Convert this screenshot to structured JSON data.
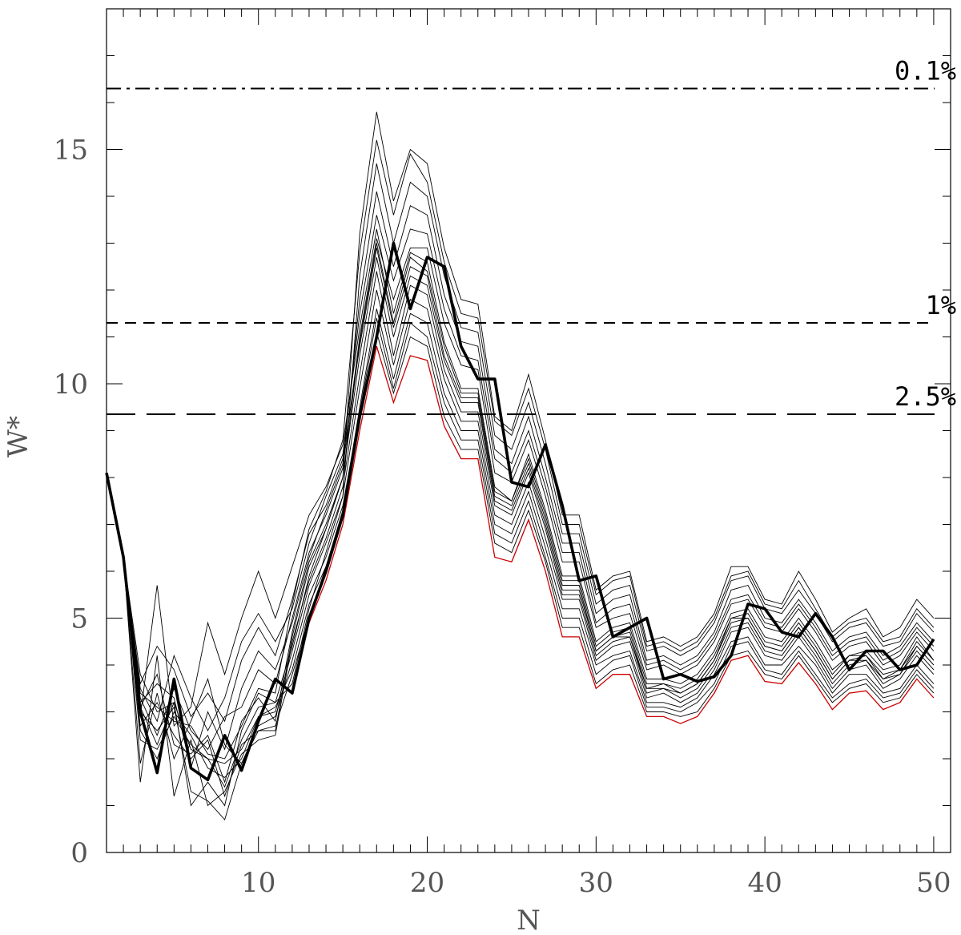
{
  "chart_data": {
    "type": "line",
    "xlabel": "N",
    "ylabel": "W*",
    "xlim": [
      1,
      51
    ],
    "ylim": [
      0,
      18
    ],
    "x_ticks_major": [
      10,
      20,
      30,
      40,
      50
    ],
    "y_ticks_major": [
      0,
      5,
      10,
      15
    ],
    "x_tick_labels": [
      "10",
      "20",
      "30",
      "40",
      "50"
    ],
    "y_tick_labels": [
      "0",
      "5",
      "10",
      "15"
    ],
    "grid": false,
    "x": [
      1,
      2,
      3,
      4,
      5,
      6,
      7,
      8,
      9,
      10,
      11,
      12,
      13,
      14,
      15,
      16,
      17,
      18,
      19,
      20,
      21,
      22,
      23,
      24,
      25,
      26,
      27,
      28,
      29,
      30,
      31,
      32,
      33,
      34,
      35,
      36,
      37,
      38,
      39,
      40,
      41,
      42,
      43,
      44,
      45,
      46,
      47,
      48,
      49,
      50
    ],
    "thresholds": [
      {
        "label": "0.1%",
        "value": 16.3,
        "style": "dashdot"
      },
      {
        "label": "1%",
        "value": 11.3,
        "style": "dashed"
      },
      {
        "label": "2.5%",
        "value": 9.35,
        "style": "longdash"
      }
    ],
    "observed": {
      "values": [
        8.1,
        6.3,
        3.0,
        1.7,
        3.7,
        1.8,
        1.55,
        2.5,
        1.75,
        2.8,
        3.7,
        3.4,
        5.0,
        6.0,
        7.2,
        9.3,
        11.0,
        13.0,
        11.6,
        12.7,
        12.5,
        10.8,
        10.1,
        10.1,
        7.9,
        7.8,
        8.7,
        7.4,
        5.8,
        5.9,
        4.6,
        4.8,
        5.0,
        3.7,
        3.8,
        3.65,
        3.75,
        4.2,
        5.3,
        5.2,
        4.7,
        4.6,
        5.1,
        4.6,
        3.9,
        4.3,
        4.3,
        3.9,
        4.0,
        4.55
      ]
    },
    "lower_envelope": {
      "values": [
        8.1,
        6.3,
        3.0,
        1.7,
        3.7,
        1.8,
        1.55,
        2.5,
        1.75,
        2.8,
        3.7,
        3.4,
        4.9,
        5.8,
        7.0,
        9.0,
        10.8,
        9.6,
        10.6,
        10.5,
        9.1,
        8.4,
        8.4,
        6.3,
        6.2,
        7.1,
        6.0,
        4.6,
        4.6,
        3.5,
        3.8,
        3.8,
        2.9,
        2.9,
        2.75,
        2.9,
        3.4,
        4.1,
        4.2,
        3.65,
        3.6,
        4.05,
        3.6,
        3.05,
        3.4,
        3.45,
        3.05,
        3.2,
        3.7,
        3.3
      ]
    },
    "simulations": [
      {
        "values": [
          8.1,
          6.3,
          1.9,
          3.4,
          2.0,
          2.8,
          3.7,
          2.3,
          1.9,
          2.7,
          2.9,
          4.1,
          5.5,
          6.3,
          7.4,
          9.4,
          11.4,
          9.9,
          11.3,
          11.0,
          9.6,
          8.8,
          8.8,
          6.8,
          6.6,
          7.5,
          6.3,
          5.0,
          5.0,
          3.8,
          4.1,
          4.2,
          3.1,
          3.1,
          3.0,
          3.2,
          3.6,
          4.4,
          4.5,
          3.9,
          3.8,
          4.3,
          3.8,
          3.3,
          3.6,
          3.7,
          3.3,
          3.4,
          3.9,
          3.5
        ]
      },
      {
        "values": [
          8.1,
          6.3,
          2.4,
          2.2,
          2.9,
          2.3,
          2.0,
          1.9,
          2.2,
          2.9,
          3.1,
          3.9,
          5.3,
          6.1,
          7.3,
          9.5,
          11.6,
          10.1,
          11.5,
          11.3,
          9.8,
          9.0,
          9.0,
          7.0,
          6.8,
          7.7,
          6.5,
          5.2,
          5.2,
          4.0,
          4.2,
          4.3,
          3.2,
          3.2,
          3.1,
          3.3,
          3.8,
          4.5,
          4.6,
          4.0,
          4.0,
          4.4,
          4.0,
          3.4,
          3.8,
          3.8,
          3.4,
          3.5,
          4.0,
          3.6
        ]
      },
      {
        "values": [
          8.1,
          6.3,
          3.8,
          3.0,
          3.2,
          1.0,
          1.5,
          1.0,
          2.6,
          3.4,
          3.2,
          3.6,
          5.2,
          6.4,
          7.6,
          9.9,
          12.0,
          10.4,
          11.8,
          11.6,
          10.1,
          9.2,
          9.2,
          7.2,
          7.0,
          7.9,
          6.7,
          5.4,
          5.4,
          4.1,
          4.4,
          4.5,
          3.3,
          3.4,
          3.2,
          3.4,
          3.9,
          4.7,
          4.8,
          4.2,
          4.1,
          4.6,
          4.1,
          3.5,
          3.9,
          4.0,
          3.5,
          3.7,
          4.2,
          3.8
        ]
      },
      {
        "values": [
          8.1,
          6.3,
          1.5,
          4.2,
          1.2,
          2.4,
          1.0,
          1.3,
          2.1,
          2.4,
          2.5,
          4.5,
          5.8,
          6.7,
          7.8,
          10.2,
          12.4,
          10.6,
          12.1,
          11.9,
          10.3,
          9.4,
          9.4,
          7.4,
          7.2,
          8.1,
          6.9,
          5.5,
          5.5,
          4.2,
          4.5,
          4.6,
          3.4,
          3.5,
          3.3,
          3.5,
          4.0,
          4.8,
          4.9,
          4.3,
          4.2,
          4.7,
          4.2,
          3.6,
          4.0,
          4.1,
          3.6,
          3.8,
          4.3,
          3.9
        ]
      },
      {
        "values": [
          8.1,
          6.3,
          2.9,
          5.7,
          2.7,
          3.1,
          4.9,
          3.8,
          5.0,
          6.0,
          5.0,
          6.1,
          7.2,
          7.8,
          8.7,
          11.2,
          13.3,
          11.5,
          12.8,
          12.6,
          10.9,
          9.9,
          9.9,
          7.8,
          7.5,
          8.5,
          7.3,
          5.9,
          5.9,
          4.5,
          4.8,
          4.9,
          3.7,
          3.7,
          3.6,
          3.8,
          4.3,
          5.1,
          5.2,
          4.6,
          4.5,
          5.0,
          4.5,
          3.9,
          4.2,
          4.3,
          3.9,
          4.0,
          4.6,
          4.1
        ]
      },
      {
        "values": [
          8.1,
          6.3,
          3.6,
          4.4,
          3.9,
          2.9,
          3.4,
          2.8,
          4.1,
          4.8,
          4.2,
          5.4,
          6.8,
          7.4,
          8.4,
          10.8,
          12.9,
          11.2,
          12.5,
          12.3,
          10.6,
          9.7,
          9.7,
          7.6,
          7.4,
          8.3,
          7.1,
          5.7,
          5.7,
          4.3,
          4.6,
          4.7,
          3.5,
          3.6,
          3.4,
          3.6,
          4.1,
          5.0,
          5.0,
          4.4,
          4.3,
          4.8,
          4.3,
          3.7,
          4.1,
          4.2,
          3.7,
          3.9,
          4.4,
          4.0
        ]
      },
      {
        "values": [
          8.1,
          6.3,
          3.3,
          2.5,
          3.5,
          2.6,
          2.2,
          2.9,
          3.1,
          3.9,
          3.6,
          5.0,
          6.4,
          7.2,
          8.2,
          11.0,
          13.1,
          11.8,
          12.9,
          12.9,
          11.3,
          10.4,
          10.3,
          8.1,
          7.9,
          8.8,
          7.6,
          6.2,
          6.2,
          4.8,
          5.0,
          5.1,
          3.9,
          4.0,
          3.8,
          4.0,
          4.5,
          5.3,
          5.4,
          4.8,
          4.7,
          5.2,
          4.7,
          4.1,
          4.4,
          4.5,
          4.0,
          4.2,
          4.7,
          4.3
        ]
      },
      {
        "values": [
          8.1,
          6.3,
          3.1,
          3.8,
          2.3,
          2.1,
          2.5,
          1.5,
          2.8,
          3.3,
          2.8,
          4.7,
          6.2,
          7.0,
          8.0,
          10.6,
          12.7,
          11.0,
          12.3,
          12.1,
          10.5,
          9.6,
          9.6,
          7.5,
          7.3,
          8.2,
          7.0,
          5.6,
          5.6,
          4.3,
          4.6,
          4.6,
          3.5,
          3.5,
          3.4,
          3.6,
          4.1,
          4.9,
          5.0,
          4.4,
          4.3,
          4.8,
          4.3,
          3.7,
          4.1,
          4.1,
          3.7,
          3.8,
          4.4,
          4.0
        ]
      },
      {
        "values": [
          8.1,
          6.3,
          2.7,
          3.2,
          2.5,
          2.0,
          2.4,
          1.2,
          2.3,
          2.6,
          2.7,
          3.8,
          5.0,
          6.1,
          7.2,
          9.2,
          11.1,
          9.8,
          11.0,
          10.8,
          9.3,
          8.6,
          8.6,
          6.6,
          6.4,
          7.3,
          6.2,
          4.8,
          4.8,
          3.6,
          3.9,
          4.0,
          3.0,
          3.0,
          2.9,
          3.0,
          3.5,
          4.2,
          4.3,
          3.8,
          3.7,
          4.2,
          3.7,
          3.2,
          3.5,
          3.6,
          3.2,
          3.3,
          3.8,
          3.4
        ]
      },
      {
        "values": [
          8.1,
          6.3,
          3.5,
          2.8,
          4.2,
          3.3,
          2.6,
          3.3,
          4.5,
          5.1,
          4.5,
          5.2,
          6.6,
          7.6,
          8.5,
          11.5,
          13.6,
          12.2,
          13.3,
          13.2,
          11.6,
          10.6,
          10.5,
          8.4,
          8.1,
          9.0,
          7.8,
          6.4,
          6.4,
          4.9,
          5.2,
          5.3,
          4.0,
          4.1,
          3.9,
          4.1,
          4.6,
          5.4,
          5.5,
          4.9,
          4.8,
          5.3,
          4.8,
          4.2,
          4.5,
          4.6,
          4.1,
          4.3,
          4.8,
          4.4
        ]
      },
      {
        "values": [
          8.1,
          6.3,
          3.2,
          3.6,
          3.3,
          1.8,
          3.0,
          2.2,
          3.5,
          4.3,
          3.9,
          4.9,
          6.3,
          7.3,
          8.3,
          11.8,
          14.1,
          12.5,
          13.8,
          13.6,
          11.9,
          10.9,
          10.8,
          8.6,
          8.3,
          9.3,
          8.0,
          6.6,
          6.6,
          5.1,
          5.4,
          5.5,
          4.1,
          4.2,
          4.0,
          4.2,
          4.7,
          5.6,
          5.7,
          5.0,
          4.9,
          5.4,
          4.9,
          4.3,
          4.6,
          4.7,
          4.2,
          4.4,
          4.9,
          4.5
        ]
      },
      {
        "values": [
          8.1,
          6.3,
          2.6,
          2.0,
          3.0,
          2.5,
          1.8,
          1.6,
          2.0,
          2.9,
          3.0,
          4.3,
          5.7,
          6.6,
          7.6,
          12.3,
          14.7,
          13.0,
          14.3,
          14.0,
          12.3,
          11.2,
          11.1,
          8.9,
          8.6,
          9.6,
          8.3,
          6.8,
          6.8,
          5.3,
          5.6,
          5.7,
          4.3,
          4.4,
          4.2,
          4.4,
          4.9,
          5.8,
          5.9,
          5.2,
          5.1,
          5.6,
          5.1,
          4.5,
          4.8,
          4.9,
          4.4,
          4.5,
          5.1,
          4.7
        ]
      },
      {
        "values": [
          8.1,
          6.3,
          3.4,
          3.1,
          2.8,
          2.7,
          2.1,
          2.0,
          2.7,
          3.5,
          3.4,
          5.3,
          6.9,
          7.7,
          8.8,
          12.8,
          15.2,
          13.6,
          14.9,
          14.3,
          12.6,
          11.5,
          11.4,
          9.2,
          8.9,
          9.9,
          8.6,
          7.0,
          7.0,
          5.5,
          5.8,
          5.9,
          4.4,
          4.5,
          4.3,
          4.5,
          5.0,
          5.9,
          6.0,
          5.3,
          5.2,
          5.8,
          5.2,
          4.6,
          4.9,
          5.0,
          4.5,
          4.6,
          5.2,
          4.8
        ]
      },
      {
        "values": [
          8.1,
          6.3,
          3.0,
          2.6,
          3.1,
          1.3,
          1.1,
          0.7,
          1.9,
          2.6,
          2.6,
          4.6,
          6.1,
          6.9,
          8.0,
          13.2,
          15.8,
          13.9,
          15.0,
          14.7,
          12.9,
          11.8,
          11.7,
          9.3,
          9.0,
          10.2,
          8.8,
          7.2,
          7.2,
          5.6,
          5.9,
          6.0,
          4.5,
          4.6,
          4.4,
          4.6,
          5.1,
          6.1,
          6.1,
          5.4,
          5.3,
          6.0,
          5.4,
          4.7,
          5.0,
          5.2,
          4.6,
          4.8,
          5.4,
          5.0
        ]
      },
      {
        "values": [
          8.1,
          6.3,
          3.1,
          2.3,
          3.2,
          2.2,
          2.0,
          1.4,
          2.4,
          3.1,
          3.2,
          4.4,
          5.9,
          6.9,
          8.0,
          10.9,
          13.0,
          11.3,
          12.7,
          12.4,
          10.8,
          9.8,
          9.8,
          7.7,
          7.5,
          8.4,
          7.2,
          5.8,
          5.8,
          4.4,
          4.7,
          4.8,
          3.6,
          3.6,
          3.5,
          3.7,
          4.2,
          5.0,
          5.1,
          4.5,
          4.4,
          4.9,
          4.4,
          3.8,
          4.2,
          4.2,
          3.8,
          3.9,
          4.5,
          4.1
        ]
      }
    ]
  }
}
